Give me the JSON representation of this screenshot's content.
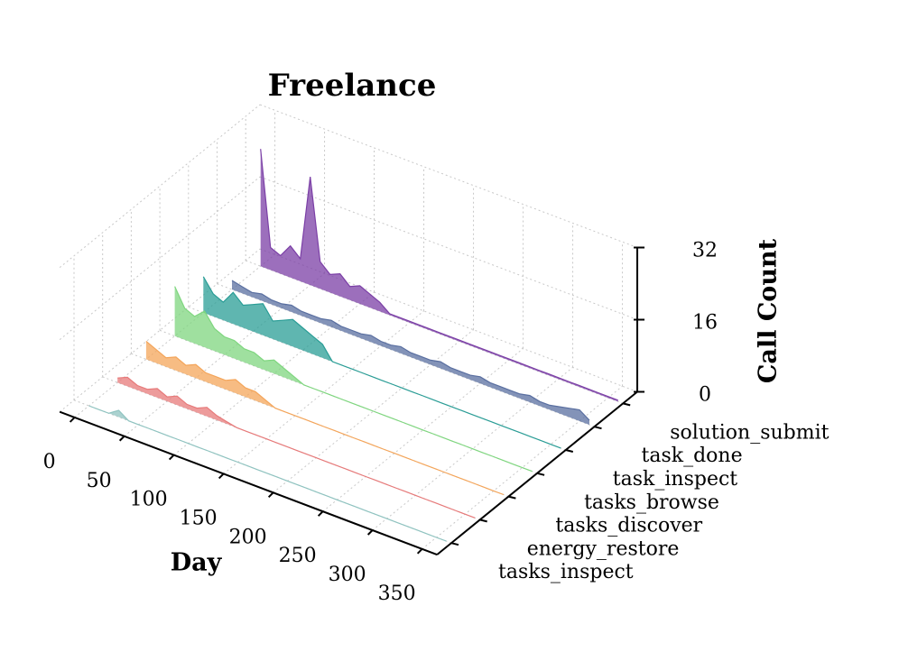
{
  "chart_data": {
    "type": "ridge3d",
    "title": "Freelance",
    "xlabel": "Day",
    "zlabel": "Call Count",
    "x": [
      0,
      10,
      20,
      30,
      40,
      50,
      60,
      70,
      80,
      90,
      100,
      110,
      120,
      130,
      140,
      150,
      160,
      170,
      180,
      190,
      200,
      210,
      220,
      230,
      240,
      250,
      260,
      270,
      280,
      290,
      300,
      310,
      320,
      330,
      340,
      350,
      360
    ],
    "xlim": [
      -15,
      365
    ],
    "xticks": [
      0,
      50,
      100,
      150,
      200,
      250,
      300,
      350
    ],
    "zlim": [
      0,
      32
    ],
    "zticks": [
      0,
      16,
      32
    ],
    "grid": true,
    "series": [
      {
        "name": "tasks_inspect",
        "color": "#8fc3c0",
        "values": [
          0,
          0,
          0,
          1.5,
          0,
          0,
          0,
          0,
          0,
          0,
          0,
          0,
          0,
          0,
          0,
          0,
          0,
          0,
          0,
          0,
          0,
          0,
          0,
          0,
          0,
          0,
          0,
          0,
          0,
          0,
          0,
          0,
          0,
          0,
          0,
          0,
          0
        ]
      },
      {
        "name": "energy_restore",
        "color": "#e77a7a",
        "values": [
          1,
          2,
          1,
          1,
          2,
          1,
          2,
          1,
          1,
          2,
          1,
          0.5,
          0,
          0,
          0,
          0,
          0,
          0,
          0,
          0,
          0,
          0,
          0,
          0,
          0,
          0,
          0,
          0,
          0,
          0,
          0,
          0,
          0,
          0,
          0,
          0,
          0
        ]
      },
      {
        "name": "tasks_discover",
        "color": "#f4a55a",
        "values": [
          4,
          3,
          2,
          3,
          2,
          3,
          2,
          2,
          2,
          3,
          2,
          2,
          1,
          0,
          0,
          0,
          0,
          0,
          0,
          0,
          0,
          0,
          0,
          0,
          0,
          0,
          0,
          0,
          0,
          0,
          0,
          0,
          0,
          0,
          0,
          0,
          0
        ]
      },
      {
        "name": "tasks_browse",
        "color": "#7fd67f",
        "values": [
          11,
          7,
          6,
          8,
          5,
          4,
          4,
          3,
          3,
          2,
          3,
          2,
          1,
          0,
          0,
          0,
          0,
          0,
          0,
          0,
          0,
          0,
          0,
          0,
          0,
          0,
          0,
          0,
          0,
          0,
          0,
          0,
          0,
          0,
          0,
          0,
          0
        ]
      },
      {
        "name": "task_inspect",
        "color": "#2a9d96",
        "values": [
          8,
          5,
          4,
          7,
          5,
          6,
          7,
          4,
          5,
          6,
          5,
          4,
          3,
          0,
          0,
          0,
          0,
          0,
          0,
          0,
          0,
          0,
          0,
          0,
          0,
          0,
          0,
          0,
          0,
          0,
          0,
          0,
          0,
          0,
          0,
          0,
          0
        ]
      },
      {
        "name": "task_done",
        "color": "#5a6fa0",
        "values": [
          2,
          1.5,
          1,
          1.5,
          1,
          1,
          1.5,
          1,
          1,
          1,
          1.5,
          1,
          1,
          1,
          1.5,
          1,
          1,
          1.5,
          1,
          1,
          1,
          1.5,
          1,
          1,
          1,
          1.5,
          1,
          1,
          1,
          1,
          1.5,
          1,
          1,
          1.5,
          2,
          2.5,
          1
        ]
      },
      {
        "name": "solution_submit",
        "color": "#7b3fa6",
        "values": [
          26,
          5,
          4,
          7,
          5,
          24,
          6,
          4,
          5,
          3,
          4,
          3,
          2,
          0.3,
          0.3,
          0.3,
          0.3,
          0.3,
          0.3,
          0.3,
          0.3,
          0.3,
          0.3,
          0.3,
          0.3,
          0.3,
          0.3,
          0.3,
          0.3,
          0.3,
          0.3,
          0.3,
          0.3,
          0.3,
          0.3,
          0.3,
          0.3
        ]
      }
    ]
  }
}
